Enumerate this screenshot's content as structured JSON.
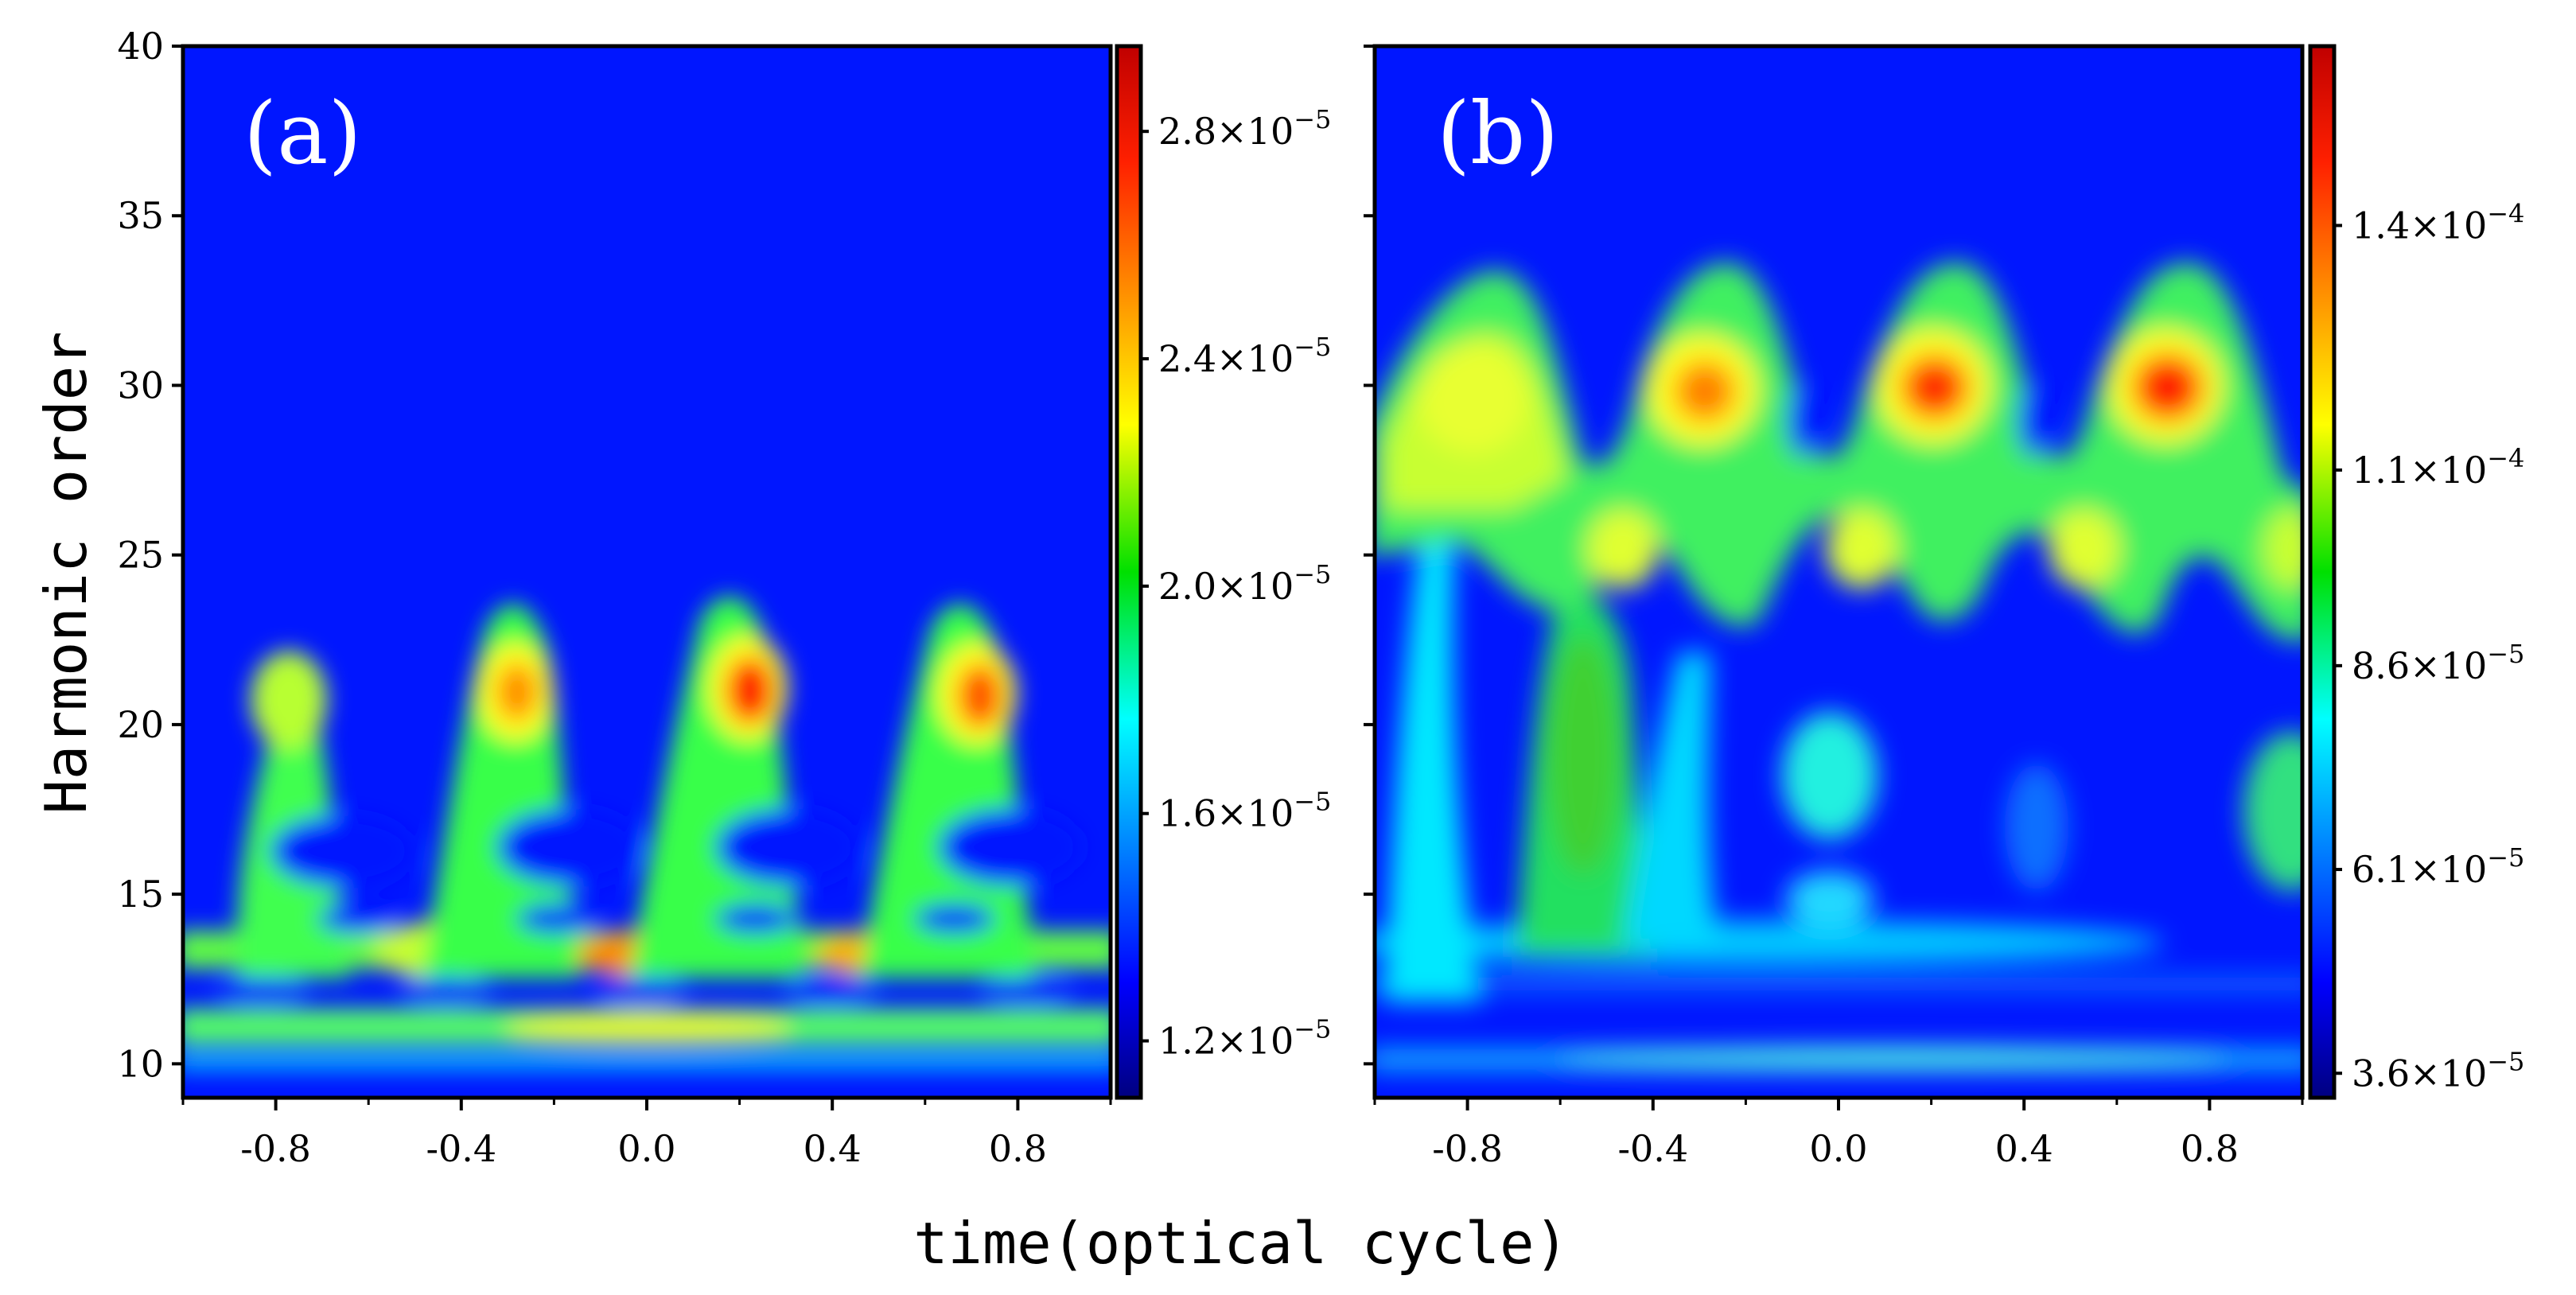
{
  "chart_data": [
    {
      "type": "heatmap",
      "panel_label": "(a)",
      "xlabel": "time(optical cycle)",
      "ylabel": "Harmonic order",
      "xlim": [
        -1.0,
        1.0
      ],
      "ylim": [
        9,
        40
      ],
      "x_ticks": [
        -0.8,
        -0.4,
        0.0,
        0.4,
        0.8
      ],
      "x_tick_labels": [
        "-0.8",
        "-0.4",
        "0.0",
        "0.4",
        "0.8"
      ],
      "y_ticks": [
        10,
        15,
        20,
        25,
        30,
        35,
        40
      ],
      "y_tick_labels": [
        "10",
        "15",
        "20",
        "25",
        "30",
        "35",
        "40"
      ],
      "colorbar": {
        "colormap": "jet",
        "range": [
          1.1e-05,
          2.95e-05
        ],
        "ticks": [
          1.2e-05,
          1.6e-05,
          2e-05,
          2.4e-05,
          2.8e-05
        ],
        "tick_labels": [
          "1.2×10",
          "1.6×10",
          "2.0×10",
          "2.4×10",
          "2.8×10"
        ],
        "tick_exponents": [
          "−5",
          "−5",
          "−5",
          "−5",
          "−5"
        ]
      },
      "features": [
        {
          "t": -0.8,
          "order": 20.5,
          "value": 2.15e-05
        },
        {
          "t": -0.27,
          "order": 20.8,
          "value": 2.55e-05
        },
        {
          "t": 0.22,
          "order": 20.8,
          "value": 2.85e-05
        },
        {
          "t": 0.72,
          "order": 20.5,
          "value": 2.7e-05
        },
        {
          "t": 0.05,
          "order": 13.0,
          "value": 2.55e-05
        },
        {
          "t": 0.55,
          "order": 13.0,
          "value": 2.4e-05
        },
        {
          "t": 0.0,
          "order": 11.2,
          "value": 2.2e-05
        }
      ]
    },
    {
      "type": "heatmap",
      "panel_label": "(b)",
      "xlabel": "time(optical cycle)",
      "ylabel": "Harmonic order",
      "xlim": [
        -1.0,
        1.0
      ],
      "ylim": [
        9,
        40
      ],
      "x_ticks": [
        -0.8,
        -0.4,
        0.0,
        0.4,
        0.8
      ],
      "x_tick_labels": [
        "-0.8",
        "-0.4",
        "0.0",
        "0.4",
        "0.8"
      ],
      "colorbar": {
        "colormap": "jet",
        "range": [
          3.3e-05,
          0.000162
        ],
        "ticks": [
          3.6e-05,
          6.1e-05,
          8.6e-05,
          0.00011,
          0.00014
        ],
        "tick_labels": [
          "3.6×10",
          "6.1×10",
          "8.6×10",
          "1.1×10",
          "1.4×10"
        ],
        "tick_exponents": [
          "−5",
          "−5",
          "−5",
          "−4",
          "−4"
        ]
      },
      "features": [
        {
          "t": -0.78,
          "order": 29.5,
          "value": 0.00011
        },
        {
          "t": -0.28,
          "order": 30.0,
          "value": 0.000138
        },
        {
          "t": 0.2,
          "order": 30.0,
          "value": 0.000148
        },
        {
          "t": 0.7,
          "order": 30.0,
          "value": 0.000152
        },
        {
          "t": -0.55,
          "order": 17.5,
          "value": 9.5e-05
        },
        {
          "t": 0.0,
          "order": 10.1,
          "value": 6.5e-05
        }
      ]
    }
  ],
  "shared": {
    "xlabel": "time(optical cycle)",
    "ylabel": "Harmonic order"
  }
}
